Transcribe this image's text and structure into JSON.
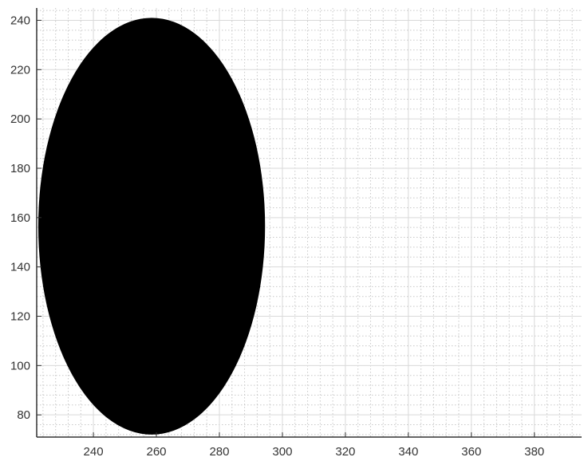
{
  "chart_data": {
    "type": "scatter",
    "title": "",
    "xlabel": "",
    "ylabel": "",
    "xlim": [
      222,
      395
    ],
    "ylim": [
      71,
      245
    ],
    "grid": true,
    "minor_grid": true,
    "xticks": [
      240,
      260,
      280,
      300,
      320,
      340,
      360,
      380
    ],
    "yticks": [
      80,
      100,
      120,
      140,
      160,
      180,
      200,
      220,
      240
    ],
    "xtick_labels": [
      "240",
      "260",
      "280",
      "300",
      "320",
      "340",
      "360",
      "380"
    ],
    "ytick_labels": [
      "80",
      "100",
      "120",
      "140",
      "160",
      "180",
      "200",
      "220",
      "240"
    ],
    "shapes": [
      {
        "shape": "filled-ellipse",
        "center": [
          258.5,
          156.5
        ],
        "radius_x": 36,
        "radius_y": 84.5,
        "fill": "#000000"
      }
    ],
    "colors": {
      "background": "#ffffff",
      "axis": "#333333",
      "major_grid": "#d9d9d9",
      "minor_grid": "#c8c8c8",
      "ellipse": "#000000"
    }
  }
}
